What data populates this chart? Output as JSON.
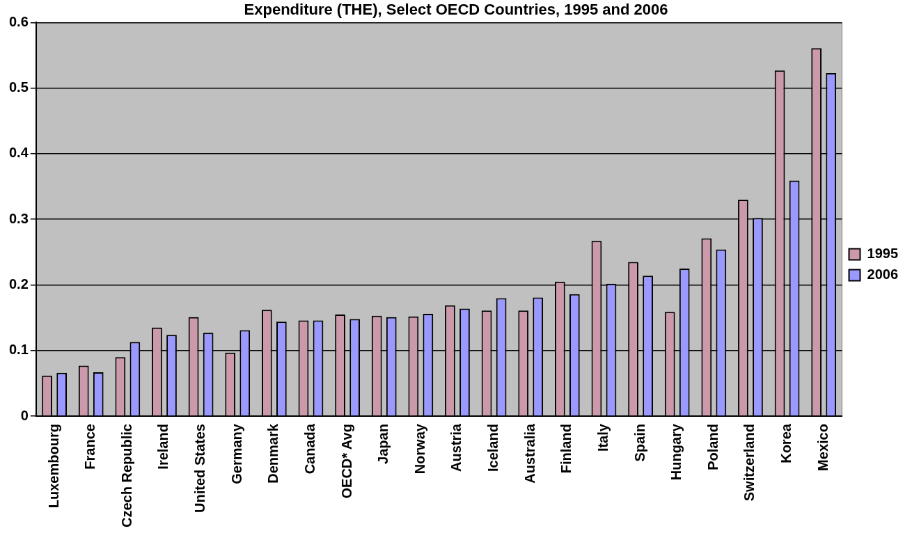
{
  "chart_data": {
    "type": "bar",
    "title": "Expenditure (THE), Select OECD Countries, 1995 and 2006",
    "categories": [
      "Luxembourg",
      "France",
      "Czech Republic",
      "Ireland",
      "United States",
      "Germany",
      "Denmark",
      "Canada",
      "OECD* Avg",
      "Japan",
      "Norway",
      "Austria",
      "Iceland",
      "Australia",
      "Finland",
      "Italy",
      "Spain",
      "Hungary",
      "Poland",
      "Switzerland",
      "Korea",
      "Mexico"
    ],
    "series": [
      {
        "name": "1995",
        "color": "#cc99aa",
        "values": [
          0.062,
          0.077,
          0.09,
          0.135,
          0.151,
          0.097,
          0.162,
          0.146,
          0.155,
          0.153,
          0.152,
          0.169,
          0.161,
          0.161,
          0.205,
          0.267,
          0.235,
          0.159,
          0.271,
          0.33,
          0.527,
          0.561
        ]
      },
      {
        "name": "2006",
        "color": "#9999ff",
        "values": [
          0.066,
          0.067,
          0.113,
          0.124,
          0.127,
          0.131,
          0.144,
          0.146,
          0.148,
          0.151,
          0.156,
          0.164,
          0.18,
          0.181,
          0.186,
          0.202,
          0.214,
          0.225,
          0.254,
          0.302,
          0.359,
          0.523
        ]
      }
    ],
    "ylim": [
      0,
      0.6
    ],
    "yticks": [
      0,
      0.1,
      0.2,
      0.3,
      0.4,
      0.5,
      0.6
    ],
    "grid": "y",
    "legend": "right"
  }
}
